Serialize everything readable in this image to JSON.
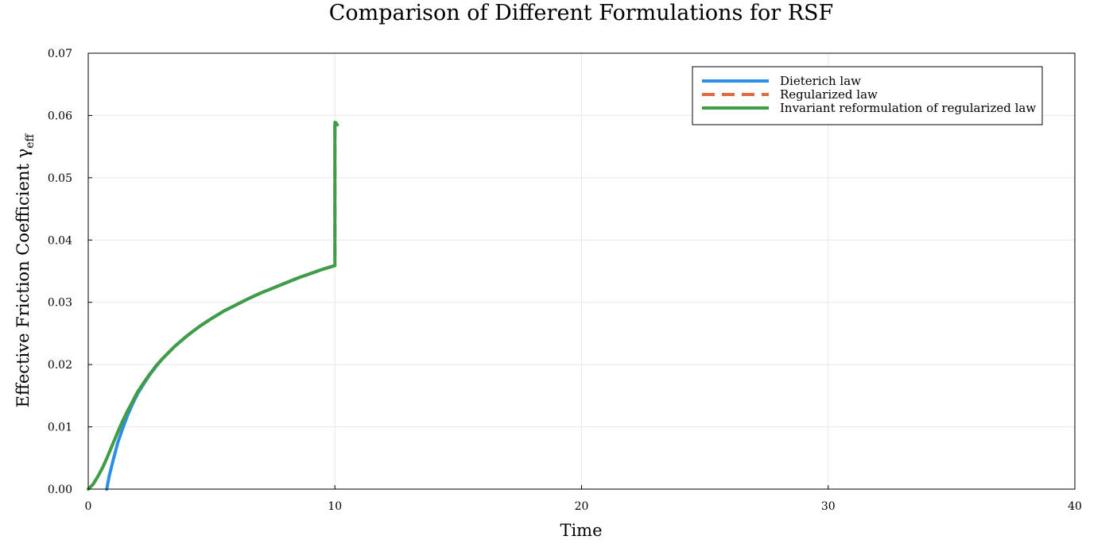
{
  "chart_data": {
    "type": "line",
    "title": "Comparison of Different Formulations for RSF",
    "xlabel": "Time",
    "ylabel_main": "Effective Friction Coefficient γ",
    "ylabel_subscript": "eff",
    "xlim": [
      0,
      40
    ],
    "ylim": [
      0,
      0.07
    ],
    "xticks": [
      0,
      10,
      20,
      30,
      40
    ],
    "xtick_labels": [
      "0",
      "10",
      "20",
      "30",
      "40"
    ],
    "yticks": [
      0,
      0.01,
      0.02,
      0.03,
      0.04,
      0.05,
      0.06,
      0.07
    ],
    "ytick_labels": [
      "0.00",
      "0.01",
      "0.02",
      "0.03",
      "0.04",
      "0.05",
      "0.06",
      "0.07"
    ],
    "grid": true,
    "legend_position": "top-right",
    "series": [
      {
        "name": "Dieterich law",
        "color": "#2b8fe6",
        "dash": "solid",
        "x": [
          0.75,
          0.85,
          1.0,
          1.2,
          1.4,
          1.6,
          1.8,
          2.0,
          2.25,
          2.5,
          2.75,
          3.0,
          3.5,
          4.0,
          4.5,
          5.0,
          5.5,
          6.0,
          6.5,
          7.0,
          7.5,
          8.0,
          8.5,
          9.0,
          9.5,
          10.0
        ],
        "y": [
          0.0,
          0.0021,
          0.0045,
          0.0075,
          0.0098,
          0.0119,
          0.0137,
          0.0153,
          0.0169,
          0.0184,
          0.0197,
          0.0209,
          0.0229,
          0.0246,
          0.0261,
          0.0274,
          0.0286,
          0.0296,
          0.0306,
          0.0315,
          0.0323,
          0.0331,
          0.0339,
          0.0346,
          0.0353,
          0.0359
        ]
      },
      {
        "name": "Regularized law",
        "color": "#e06a45",
        "dash": "dashed",
        "x": [
          0.0,
          0.2,
          0.4,
          0.6,
          0.8,
          1.0,
          1.2,
          1.4,
          1.6,
          1.8,
          2.0,
          2.25,
          2.5,
          2.75,
          3.0,
          3.5,
          4.0,
          4.5,
          5.0,
          5.5,
          6.0,
          6.5,
          7.0,
          7.5,
          8.0,
          8.5,
          9.0,
          9.5,
          10.0,
          10.0,
          10.05,
          10.1
        ],
        "y": [
          0.0,
          0.0008,
          0.0021,
          0.0036,
          0.0054,
          0.0073,
          0.0092,
          0.011,
          0.0126,
          0.0141,
          0.0156,
          0.0171,
          0.0185,
          0.0198,
          0.0209,
          0.0229,
          0.0246,
          0.0261,
          0.0274,
          0.0286,
          0.0296,
          0.0306,
          0.0315,
          0.0323,
          0.0331,
          0.0339,
          0.0346,
          0.0353,
          0.0359,
          0.0589,
          0.0588,
          0.0585
        ]
      },
      {
        "name": "Invariant reformulation of regularized law",
        "color": "#3e9e47",
        "dash": "solid",
        "x": [
          0.0,
          0.2,
          0.4,
          0.6,
          0.8,
          1.0,
          1.2,
          1.4,
          1.6,
          1.8,
          2.0,
          2.25,
          2.5,
          2.75,
          3.0,
          3.5,
          4.0,
          4.5,
          5.0,
          5.5,
          6.0,
          6.5,
          7.0,
          7.5,
          8.0,
          8.5,
          9.0,
          9.5,
          10.0,
          10.0,
          10.05,
          10.1
        ],
        "y": [
          0.0,
          0.0008,
          0.0021,
          0.0036,
          0.0054,
          0.0073,
          0.0092,
          0.011,
          0.0126,
          0.0141,
          0.0156,
          0.0171,
          0.0185,
          0.0198,
          0.0209,
          0.0229,
          0.0246,
          0.0261,
          0.0274,
          0.0286,
          0.0296,
          0.0306,
          0.0315,
          0.0323,
          0.0331,
          0.0339,
          0.0346,
          0.0353,
          0.0359,
          0.0589,
          0.0588,
          0.0585
        ]
      }
    ]
  }
}
